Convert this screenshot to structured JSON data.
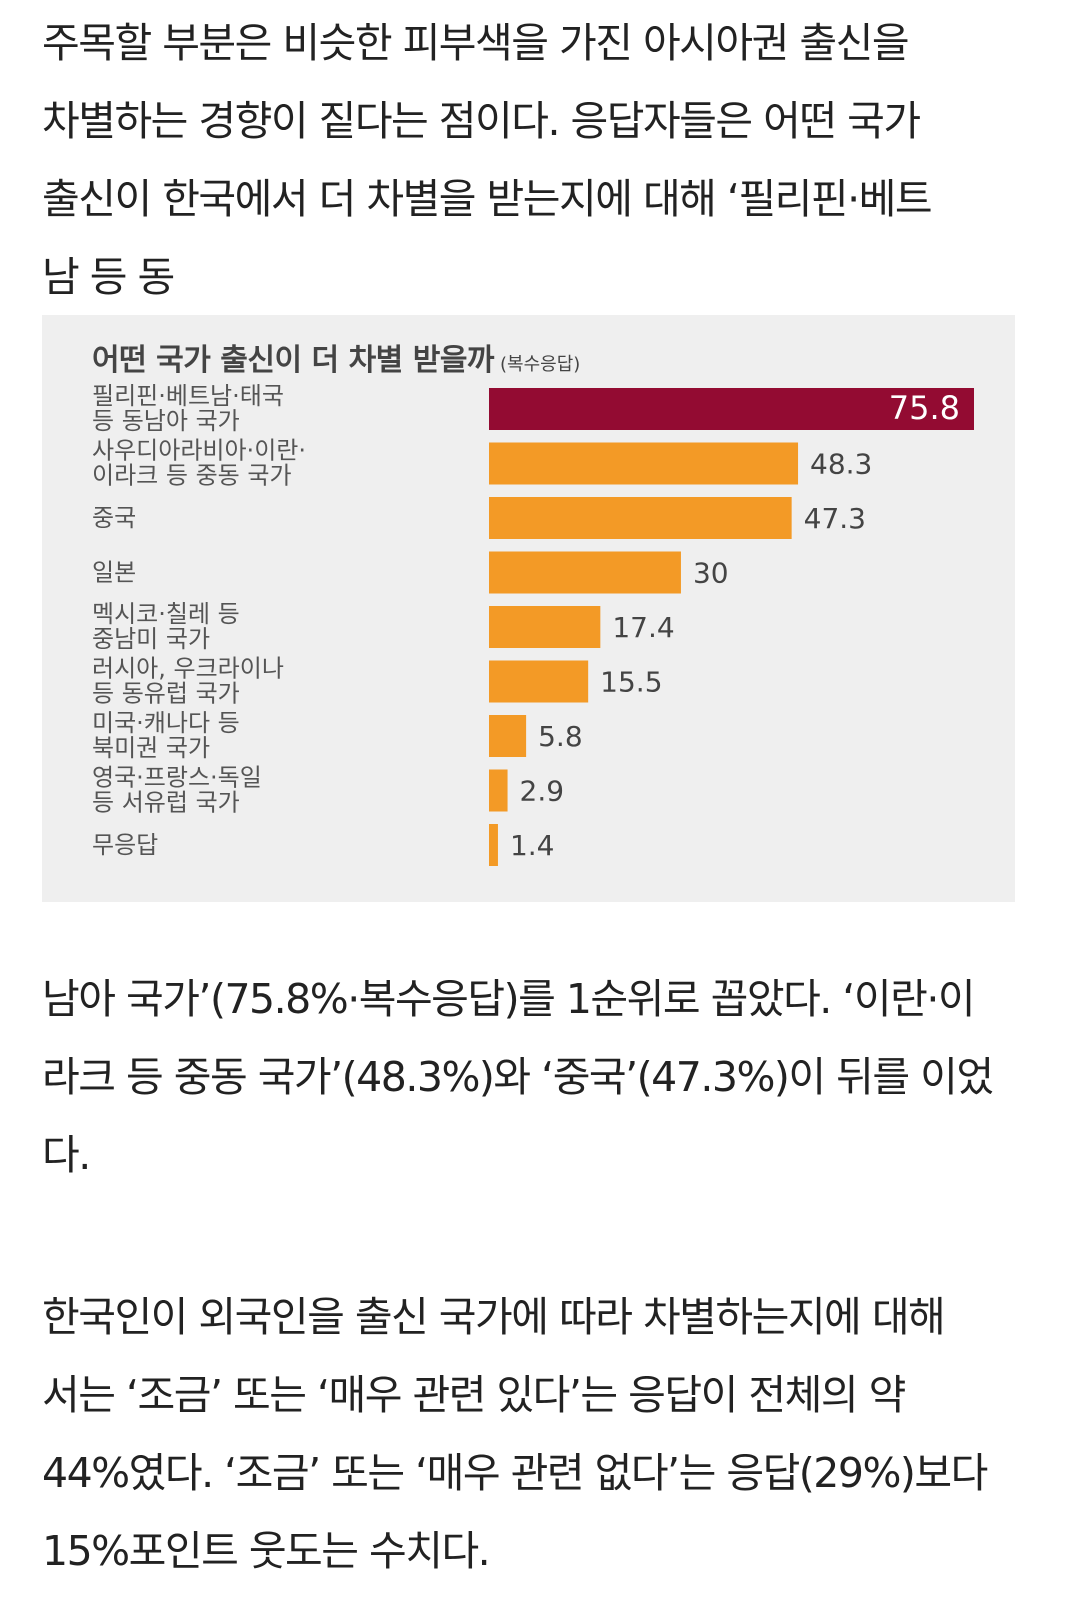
{
  "article": {
    "paragraph1": [
      "주목할 부분은 비슷한 피부색을 가진 아시아권 출신을",
      "차별하는 경향이 짙다는 점이다. 응답자들은 어떤 국가",
      "출신이 한국에서 더 차별을 받는지에 대해 ‘필리핀·베트",
      "남 등 동"
    ],
    "paragraph2": [
      "남아 국가’(75.8%·복수응답)를 1순위로 꼽았다. ‘이란·이",
      "라크 등 중동 국가’(48.3%)와 ‘중국’(47.3%)이 뒤를 이었",
      "다."
    ],
    "paragraph3": [
      "한국인이 외국인을 출신 국가에 따라 차별하는지에 대해",
      "서는 ‘조금’ 또는 ‘매우 관련 있다’는 응답이 전체의 약",
      "44%였다. ‘조금’ 또는 ‘매우 관련 없다’는 응답(29%)보다",
      "15%포인트 웃도는 수치다."
    ]
  },
  "chart_data": {
    "type": "bar",
    "orientation": "horizontal",
    "title": "어떤 국가 출신이 더 차별 받을까",
    "subtitle": "(복수응답)",
    "categories": [
      [
        "필리핀·베트남·태국",
        "등 동남아 국가"
      ],
      [
        "사우디아라비아·이란·",
        "이라크 등 중동 국가"
      ],
      [
        "중국"
      ],
      [
        "일본"
      ],
      [
        "멕시코·칠레 등",
        "중남미 국가"
      ],
      [
        "러시아, 우크라이나",
        "등 동유럽 국가"
      ],
      [
        "미국·캐나다 등",
        "북미권 국가"
      ],
      [
        "영국·프랑스·독일",
        "등 서유럽 국가"
      ],
      [
        "무응답"
      ]
    ],
    "values": [
      75.8,
      48.3,
      47.3,
      30,
      17.4,
      15.5,
      5.8,
      2.9,
      1.4
    ],
    "value_labels": [
      "75.8",
      "48.3",
      "47.3",
      "30",
      "17.4",
      "15.5",
      "5.8",
      "2.9",
      "1.4"
    ],
    "xlim": [
      0,
      75.8
    ],
    "grid": false,
    "colors": {
      "highlight": "#930b32",
      "bar": "#f39a26",
      "background": "#efefef"
    }
  }
}
